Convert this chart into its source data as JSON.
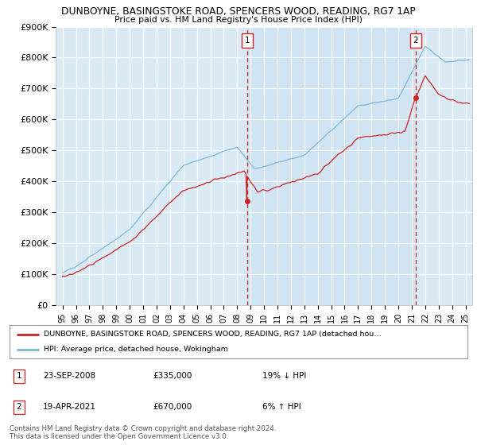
{
  "title1": "DUNBOYNE, BASINGSTOKE ROAD, SPENCERS WOOD, READING, RG7 1AP",
  "title2": "Price paid vs. HM Land Registry's House Price Index (HPI)",
  "hpi_color": "#7ab8d9",
  "price_color": "#cc2222",
  "bg_color": "#daeaf5",
  "sale1_x": 2008.73,
  "sale1_price": 335000,
  "sale2_x": 2021.29,
  "sale2_price": 670000,
  "legend_line1": "DUNBOYNE, BASINGSTOKE ROAD, SPENCERS WOOD, READING, RG7 1AP (detached hou…",
  "legend_line2": "HPI: Average price, detached house, Wokingham",
  "ann1_date": "23-SEP-2008",
  "ann1_price": "£335,000",
  "ann1_hpi": "19% ↓ HPI",
  "ann2_date": "19-APR-2021",
  "ann2_price": "£670,000",
  "ann2_hpi": "6% ↑ HPI",
  "footer": "Contains HM Land Registry data © Crown copyright and database right 2024.\nThis data is licensed under the Open Government Licence v3.0.",
  "ylim": [
    0,
    900000
  ],
  "yticks": [
    0,
    100000,
    200000,
    300000,
    400000,
    500000,
    600000,
    700000,
    800000,
    900000
  ],
  "ytick_labels": [
    "£0",
    "£100K",
    "£200K",
    "£300K",
    "£400K",
    "£500K",
    "£600K",
    "£700K",
    "£800K",
    "£900K"
  ],
  "xlim": [
    1994.5,
    2025.5
  ]
}
